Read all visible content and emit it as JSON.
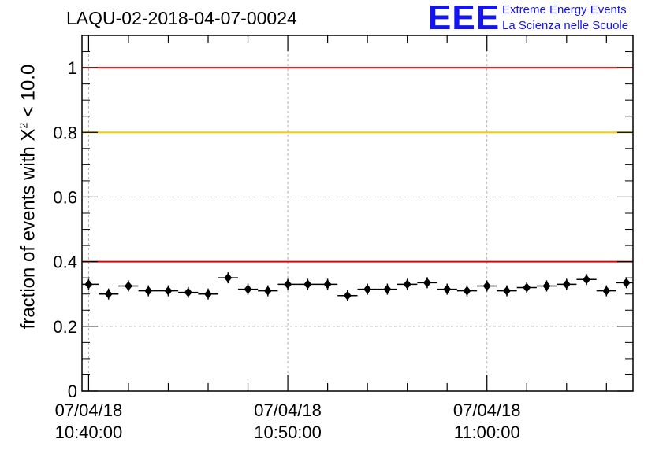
{
  "title": "LAQU-02-2018-04-07-00024",
  "logo": {
    "mark": "EEE",
    "line1": "Extreme Energy Events",
    "line2": "La Scienza nelle Scuole"
  },
  "colors": {
    "brand_blue": "#1414f0",
    "red_line": "#e60000",
    "yellow_line": "#ffc800",
    "grid": "#b0b0b0",
    "marker": "#000000"
  },
  "chart_data": {
    "type": "scatter",
    "title": "LAQU-02-2018-04-07-00024",
    "ylabel": {
      "prefix": "fraction of events with X",
      "superscript": "2",
      "suffix": " < 10.0"
    },
    "xlabel": "",
    "x_unit": "time",
    "x_range": [
      "2018-04-07 10:39:40",
      "2018-04-07 11:07:20"
    ],
    "ylim": [
      0,
      1.1
    ],
    "y_ticks": [
      0,
      0.2,
      0.4,
      0.6,
      0.8,
      1
    ],
    "y_tick_labels": [
      "0",
      "0.2",
      "0.4",
      "0.6",
      "0.8",
      "1"
    ],
    "x_ticks": [
      {
        "time": "2018-04-07 10:40:00",
        "label_date": "07/04/18",
        "label_time": "10:40:00"
      },
      {
        "time": "2018-04-07 10:50:00",
        "label_date": "07/04/18",
        "label_time": "10:50:00"
      },
      {
        "time": "2018-04-07 11:00:00",
        "label_date": "07/04/18",
        "label_time": "11:00:00"
      }
    ],
    "grid": true,
    "reference_lines": [
      {
        "y": 1.0,
        "color": "#e60000"
      },
      {
        "y": 0.8,
        "color": "#ffc800"
      },
      {
        "y": 0.4,
        "color": "#e60000"
      }
    ],
    "bin_width_minutes": 1,
    "series": [
      {
        "x": [
          "10:40:00",
          "10:41:00",
          "10:42:00",
          "10:43:00",
          "10:44:00",
          "10:45:00",
          "10:46:00",
          "10:47:00",
          "10:48:00",
          "10:49:00",
          "10:50:00",
          "10:51:00",
          "10:52:00",
          "10:53:00",
          "10:54:00",
          "10:55:00",
          "10:56:00",
          "10:57:00",
          "10:58:00",
          "10:59:00",
          "11:00:00",
          "11:01:00",
          "11:02:00",
          "11:03:00",
          "11:04:00",
          "11:05:00",
          "11:06:00",
          "11:07:00"
        ],
        "y": [
          0.33,
          0.3,
          0.325,
          0.31,
          0.31,
          0.305,
          0.3,
          0.35,
          0.315,
          0.31,
          0.33,
          0.33,
          0.33,
          0.295,
          0.315,
          0.315,
          0.33,
          0.335,
          0.315,
          0.31,
          0.325,
          0.31,
          0.32,
          0.325,
          0.33,
          0.345,
          0.31,
          0.335
        ]
      }
    ]
  }
}
